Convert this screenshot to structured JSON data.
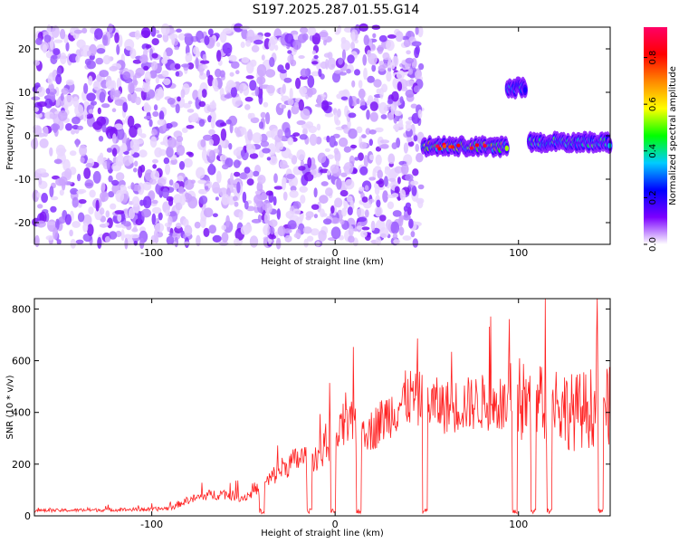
{
  "title": "S197.2025.287.01.55.G14",
  "chart_data": [
    {
      "type": "heatmap",
      "title": "S197.2025.287.01.55.G14",
      "xlabel": "Height of straight line (km)",
      "ylabel": "Frequency (Hz)",
      "xlim": [
        -164,
        150
      ],
      "ylim": [
        -25,
        25
      ],
      "xticks": [
        "-100",
        "0",
        "100"
      ],
      "yticks": [
        "-20",
        "-10",
        "0",
        "10",
        "20"
      ],
      "colorbar": {
        "label": "Normalized spectral amplitude",
        "range": [
          0.0,
          0.93
        ],
        "ticks": [
          "0.0",
          "0.2",
          "0.4",
          "0.6",
          "0.8"
        ],
        "colors": [
          "#ffffff",
          "#7b00ff",
          "#0000ff",
          "#00ccff",
          "#00ff00",
          "#ffff00",
          "#ff8800",
          "#ff0000",
          "#ff0066"
        ]
      },
      "features": [
        {
          "label": "noise",
          "x_range": [
            -164,
            47
          ],
          "freq_range": [
            -25,
            25
          ],
          "amplitude": 0.1
        },
        {
          "label": "signal band",
          "x_range": [
            48,
            94
          ],
          "freq_center": -2.5,
          "amplitude": 0.7
        },
        {
          "label": "signal burst",
          "x_range": [
            94,
            104
          ],
          "freq_center": 11,
          "amplitude": 0.45
        },
        {
          "label": "signal band",
          "x_range": [
            106,
            150
          ],
          "freq_center": -1.5,
          "amplitude": 0.5
        }
      ]
    },
    {
      "type": "line",
      "xlabel": "Height of straight line (km)",
      "ylabel": "SNR (10 * v/v)",
      "xlim": [
        -164,
        150
      ],
      "ylim": [
        0,
        840
      ],
      "xticks": [
        "-100",
        "0",
        "100"
      ],
      "yticks": [
        "0",
        "200",
        "400",
        "600",
        "800"
      ],
      "line_color": "#ff2222",
      "series": [
        {
          "name": "SNR envelope",
          "x": [
            -164,
            -100,
            -90,
            -80,
            -70,
            -60,
            -50,
            -40,
            -30,
            -20,
            -10,
            0,
            10,
            20,
            30,
            40,
            50,
            60,
            70,
            80,
            90,
            100,
            110,
            120,
            130,
            140,
            150
          ],
          "y": [
            20,
            25,
            30,
            60,
            80,
            85,
            70,
            110,
            180,
            220,
            230,
            300,
            360,
            330,
            400,
            460,
            440,
            420,
            430,
            440,
            420,
            440,
            430,
            440,
            400,
            420,
            420
          ]
        }
      ],
      "dropouts": [
        -40,
        -14,
        -1,
        13,
        49,
        98,
        108,
        117,
        145
      ]
    }
  ]
}
